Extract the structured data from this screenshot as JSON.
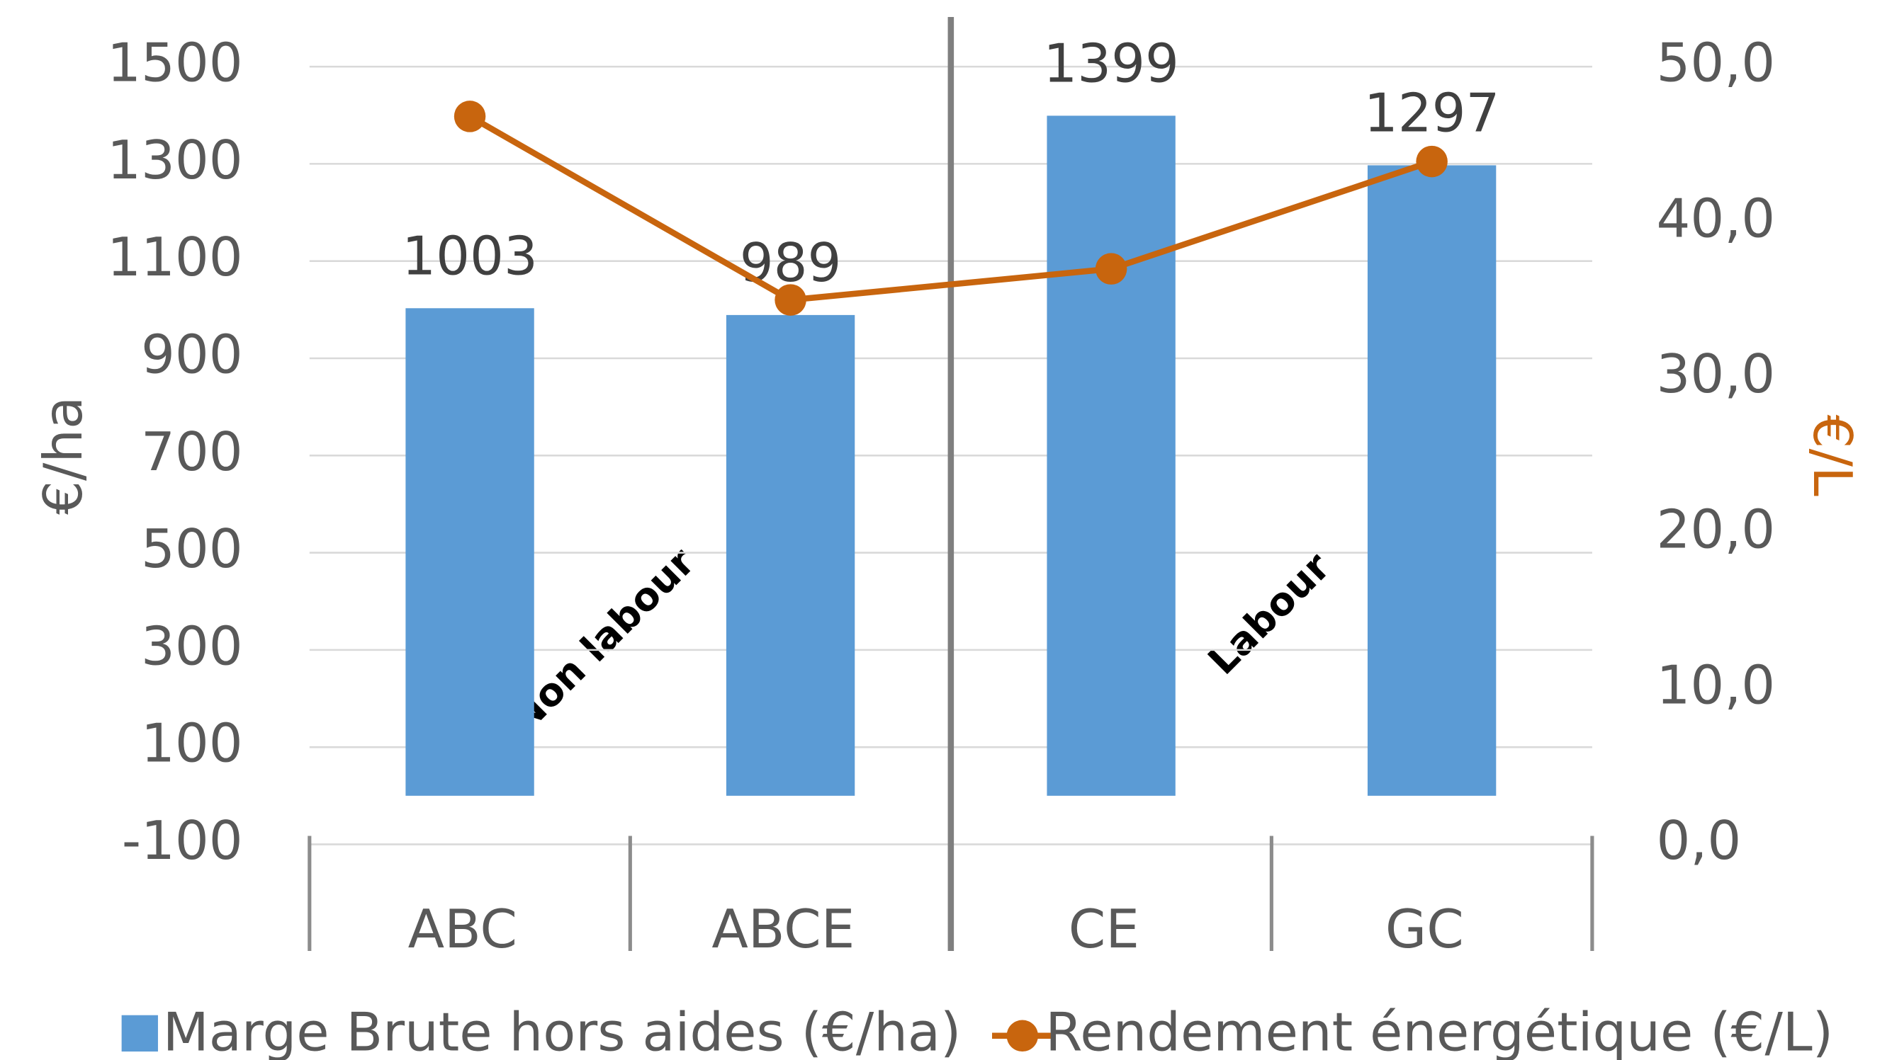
{
  "chart_data": {
    "type": "bar-line",
    "categories": [
      "ABC",
      "ABCE",
      "CE",
      "GC"
    ],
    "series": [
      {
        "name": "Marge Brute hors aides (€/ha)",
        "type": "bar",
        "color": "#5b9bd5",
        "values": [
          1003,
          989,
          1399,
          1297
        ]
      },
      {
        "name": "Rendement énergétique (€/L)",
        "type": "line",
        "axis": "y2",
        "color": "#c8650e",
        "values": [
          46.8,
          35.0,
          37.0,
          43.9
        ]
      }
    ],
    "ylabel": "€/ha",
    "y2label": "€/L",
    "ylim": [
      -100,
      1500
    ],
    "yticks": [
      -100,
      100,
      300,
      500,
      700,
      900,
      1100,
      1300,
      1500
    ],
    "y2lim": [
      0,
      50
    ],
    "y2ticks": [
      {
        "value": 0,
        "label": "0,0"
      },
      {
        "value": 10,
        "label": "10,0"
      },
      {
        "value": 20,
        "label": "20,0"
      },
      {
        "value": 30,
        "label": "30,0"
      },
      {
        "value": 40,
        "label": "40,0"
      },
      {
        "value": 50,
        "label": "50,0"
      }
    ],
    "annotations": [
      "Non labour",
      "Labour"
    ],
    "grid": true,
    "legend": "bottom"
  }
}
